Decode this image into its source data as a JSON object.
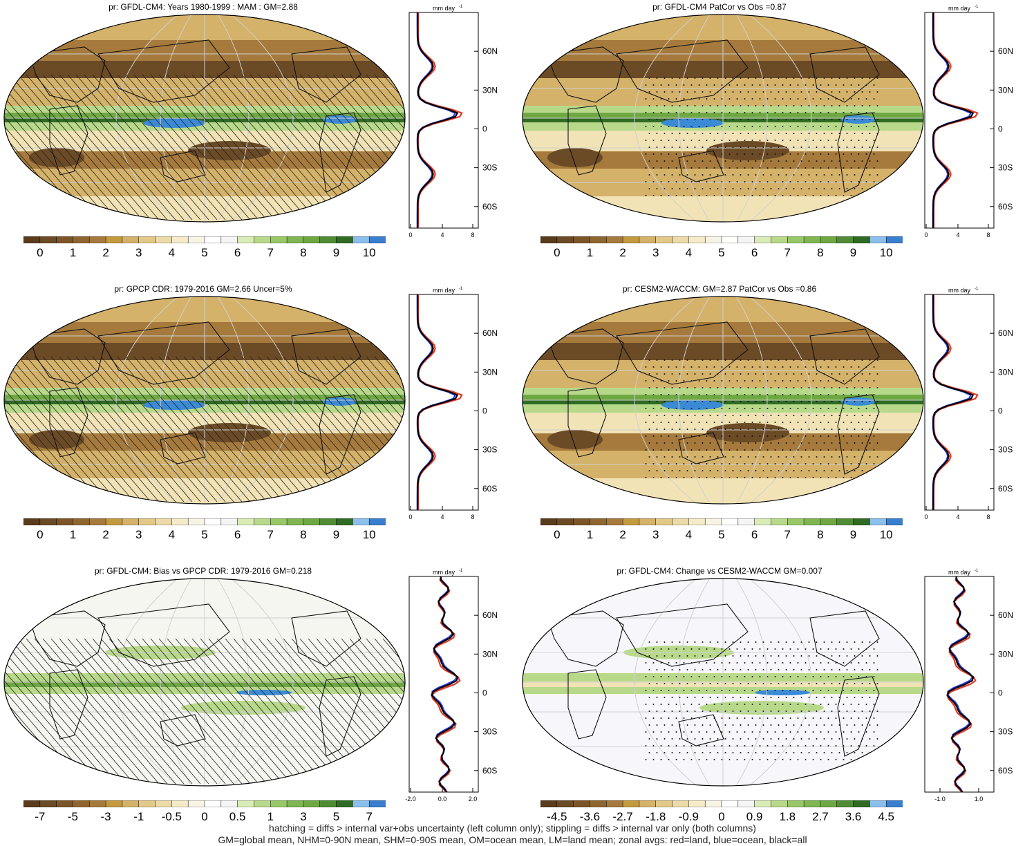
{
  "colors": {
    "dry_dark": "#6b4a26",
    "dry_mid": "#a57a3c",
    "tan": "#d4b26a",
    "pale": "#f1e3b5",
    "white": "#f7f7f7",
    "green_light": "#b8d98a",
    "green_mid": "#6fa843",
    "green_dark": "#2f6b22",
    "blue": "#3a8ad6",
    "land_line": "#e23a2a",
    "ocean_line": "#2a3fe0",
    "all_line": "#000000"
  },
  "panels": [
    {
      "id": "p1",
      "title": "pr: GFDL-CM4: Years 1980-1999 : MAM : GM=2.88",
      "overlay": "hatch",
      "scale_labels": [
        "0",
        "1",
        "2",
        "3",
        "4",
        "5",
        "6",
        "7",
        "8",
        "9",
        "10"
      ],
      "zonal_axis": {
        "top_label": "mm day",
        "top_sup": "-1",
        "x_ticks": [
          "0",
          "4",
          "8"
        ],
        "lat_ticks": [
          "60N",
          "30N",
          "0",
          "30S",
          "60S"
        ]
      }
    },
    {
      "id": "p2",
      "title": "pr: GFDL-CM4 PatCor vs Obs =0.87",
      "overlay": "stipple",
      "scale_labels": [
        "0",
        "1",
        "2",
        "3",
        "4",
        "5",
        "6",
        "7",
        "8",
        "9",
        "10"
      ],
      "zonal_axis": {
        "top_label": "mm day",
        "top_sup": "-1",
        "x_ticks": [
          "0",
          "4",
          "8"
        ],
        "lat_ticks": [
          "60N",
          "30N",
          "0",
          "30S",
          "60S"
        ]
      }
    },
    {
      "id": "p3",
      "title": "pr: GPCP CDR: 1979-2016 GM=2.66 Uncer=5%",
      "overlay": "hatch",
      "scale_labels": [
        "0",
        "1",
        "2",
        "3",
        "4",
        "5",
        "6",
        "7",
        "8",
        "9",
        "10"
      ],
      "zonal_axis": {
        "top_label": "mm day",
        "top_sup": "-1",
        "x_ticks": [
          "0",
          "4",
          "8"
        ],
        "lat_ticks": [
          "60N",
          "30N",
          "0",
          "30S",
          "60S"
        ]
      }
    },
    {
      "id": "p4",
      "title": "pr: CESM2-WACCM: GM=2.87 PatCor vs Obs =0.86",
      "overlay": "stipple",
      "scale_labels": [
        "0",
        "1",
        "2",
        "3",
        "4",
        "5",
        "6",
        "7",
        "8",
        "9",
        "10"
      ],
      "zonal_axis": {
        "top_label": "mm day",
        "top_sup": "-1",
        "x_ticks": [
          "0",
          "4",
          "8"
        ],
        "lat_ticks": [
          "60N",
          "30N",
          "0",
          "30S",
          "60S"
        ]
      }
    },
    {
      "id": "p5",
      "title": "pr: GFDL-CM4: Bias vs GPCP CDR: 1979-2016 GM=0.218",
      "overlay": "hatch",
      "scale_labels": [
        "-7",
        "-5",
        "-3",
        "-1",
        "-0.5",
        "0",
        "0.5",
        "1",
        "3",
        "5",
        "7"
      ],
      "zonal_axis": {
        "top_label": "mm day",
        "top_sup": "-1",
        "x_ticks": [
          "-2.0",
          "0.0",
          "2.0"
        ],
        "lat_ticks": [
          "60N",
          "30N",
          "0",
          "30S",
          "60S"
        ]
      }
    },
    {
      "id": "p6",
      "title": "pr: GFDL-CM4: Change vs CESM2-WACCM GM=0.007",
      "overlay": "stipple",
      "scale_labels": [
        "-4.5",
        "-3.6",
        "-2.7",
        "-1.8",
        "-0.9",
        "0",
        "0.9",
        "1.8",
        "2.7",
        "3.6",
        "4.5"
      ],
      "zonal_axis": {
        "top_label": "mm day",
        "top_sup": "-1",
        "x_ticks": [
          "-1.0",
          "1.0"
        ],
        "lat_ticks": [
          "60N",
          "30N",
          "0",
          "30S",
          "60S"
        ]
      }
    }
  ],
  "footer": {
    "line1": "hatching = diffs > internal var+obs uncertainty (left column only); stippling = diffs > internal var only (both columns)",
    "line2": "GM=global mean, NHM=0-90N mean, SHM=0-90S mean, OM=ocean mean, LM=land mean; zonal avgs: red=land, blue=ocean, black=all"
  }
}
